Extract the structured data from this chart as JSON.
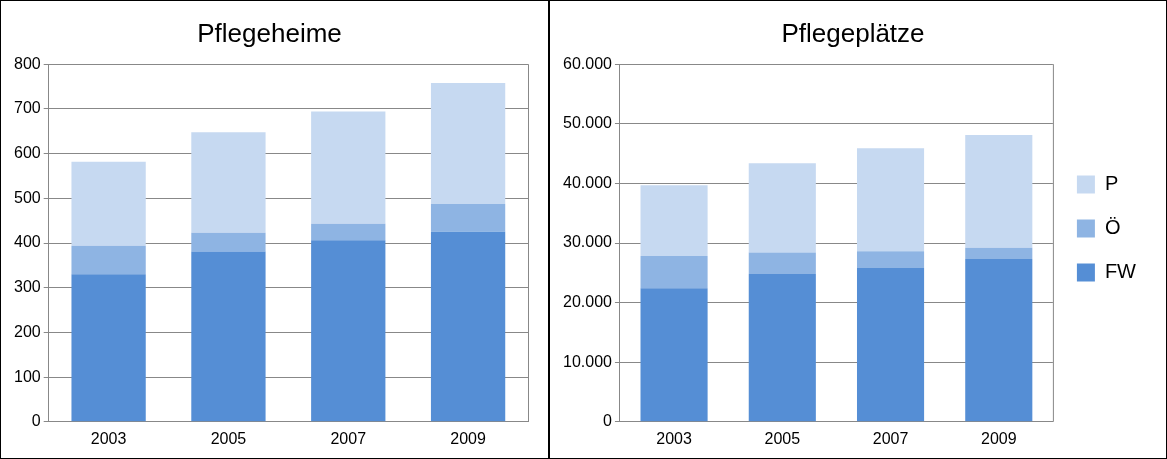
{
  "chart_data": [
    {
      "type": "bar",
      "title": "Pflegeheime",
      "categories": [
        "2003",
        "2005",
        "2007",
        "2009"
      ],
      "stacked": true,
      "grid": "y",
      "legend": false,
      "series": [
        {
          "color": "#558ed5",
          "values": [
            330,
            381,
            406,
            425
          ]
        },
        {
          "color": "#8eb4e3",
          "values": [
            64,
            42,
            37,
            62
          ]
        },
        {
          "color": "#c6d9f1",
          "values": [
            188,
            225,
            251,
            271
          ]
        }
      ],
      "ylim": [
        0,
        800
      ],
      "yticks": [
        0,
        100,
        200,
        300,
        400,
        500,
        600,
        700,
        800
      ]
    },
    {
      "type": "bar",
      "title": "Pflegeplätze",
      "categories": [
        "2003",
        "2005",
        "2007",
        "2009"
      ],
      "stacked": true,
      "grid": "y",
      "legend": "right",
      "series": [
        {
          "name": "FW",
          "color": "#558ed5",
          "values": [
            22400,
            24800,
            25800,
            27300
          ]
        },
        {
          "name": "Ö",
          "color": "#8eb4e3",
          "values": [
            5400,
            3600,
            2800,
            1900
          ]
        },
        {
          "name": "P",
          "color": "#c6d9f1",
          "values": [
            11900,
            15000,
            17300,
            18900
          ]
        }
      ],
      "ylim": [
        0,
        60000
      ],
      "yticks": [
        {
          "value": 0,
          "label": "0"
        },
        {
          "value": 10000,
          "label": "10.000"
        },
        {
          "value": 20000,
          "label": "20.000"
        },
        {
          "value": 30000,
          "label": "30.000"
        },
        {
          "value": 40000,
          "label": "40.000"
        },
        {
          "value": 50000,
          "label": "50.000"
        },
        {
          "value": 60000,
          "label": "60.000"
        }
      ]
    }
  ]
}
